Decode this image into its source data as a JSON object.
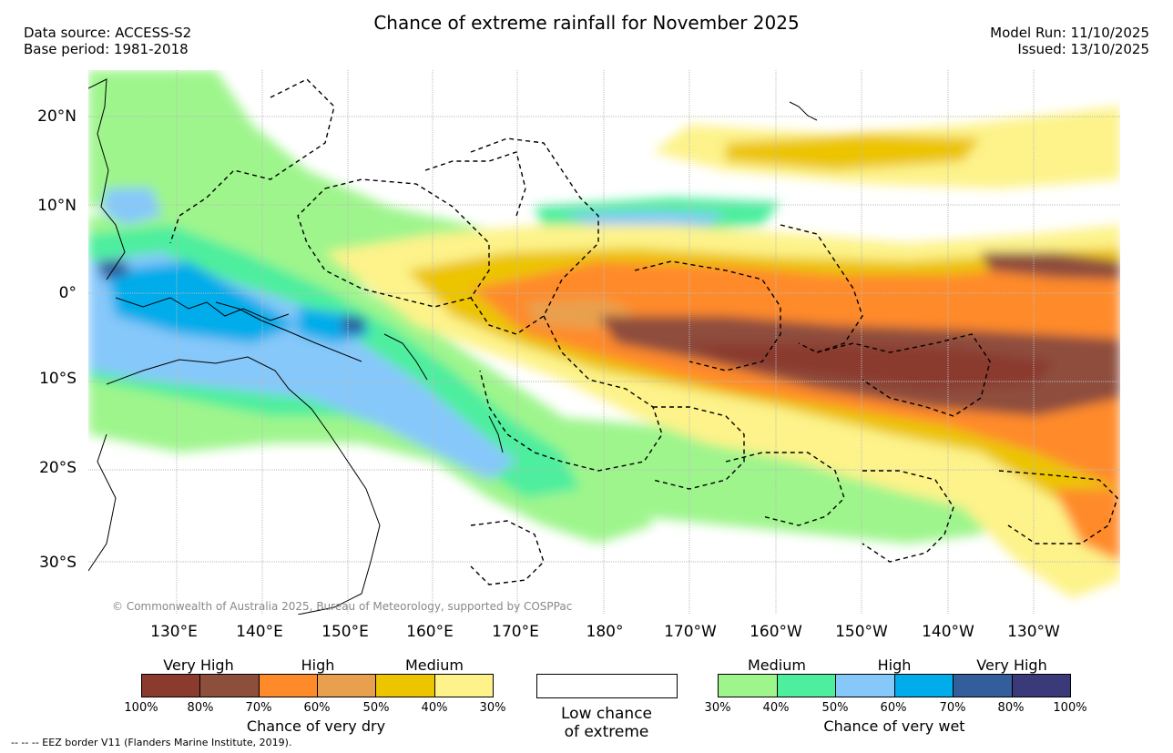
{
  "header": {
    "title": "Chance of extreme rainfall for November 2025",
    "data_source": "Data source: ACCESS-S2",
    "base_period": "Base period: 1981-2018",
    "model_run": "Model Run: 11/10/2025",
    "issued": "Issued: 13/10/2025"
  },
  "map": {
    "copyright": "© Commonwealth of Australia 2025, Bureau of Meteorology, supported by COSPPac",
    "lat_labels": [
      "20°N",
      "10°N",
      "0°",
      "10°S",
      "20°S",
      "30°S"
    ],
    "lon_labels": [
      "130°E",
      "140°E",
      "150°E",
      "160°E",
      "170°E",
      "180°",
      "170°W",
      "160°W",
      "150°W",
      "140°W",
      "130°W"
    ]
  },
  "legend": {
    "dry": {
      "title": "Chance of very dry",
      "categories": [
        "Very High",
        "High",
        "Medium"
      ],
      "ticks": [
        "100%",
        "80%",
        "70%",
        "60%",
        "50%",
        "40%",
        "30%"
      ],
      "colors": [
        "#8b3a2e",
        "#8e4e3c",
        "#ff8a2a",
        "#e9a04e",
        "#ecc400",
        "#fdf38a"
      ]
    },
    "neutral": {
      "label_line1": "Low chance",
      "label_line2": "of extreme"
    },
    "wet": {
      "title": "Chance of very wet",
      "categories": [
        "Medium",
        "High",
        "Very High"
      ],
      "ticks": [
        "30%",
        "40%",
        "50%",
        "60%",
        "70%",
        "80%",
        "100%"
      ],
      "colors": [
        "#9ef58c",
        "#4dee9e",
        "#86c8fa",
        "#00acea",
        "#335e9b",
        "#3a3979"
      ]
    }
  },
  "footer": "--  --  -- EEZ border V11 (Flanders Marine Institute, 2019)."
}
